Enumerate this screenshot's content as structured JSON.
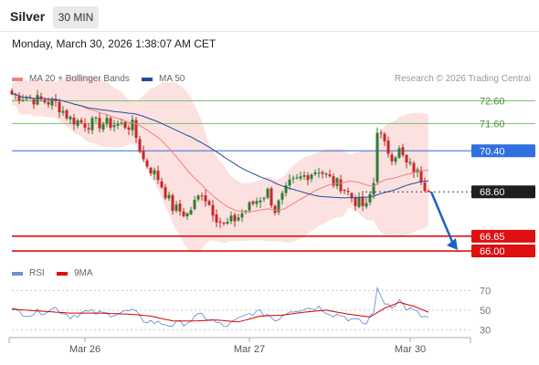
{
  "header": {
    "symbol": "Silver",
    "timeframe": "30 MIN",
    "datetime": "Monday, March 30, 2026 1:38:07 AM CET"
  },
  "legend": {
    "ma20_label": "MA 20 + Bollinger Bands",
    "ma50_label": "MA 50",
    "rsi_label": "RSI",
    "ma9_label": "9MA",
    "credit": "Research © 2026 Trading Central"
  },
  "colors": {
    "up": "#2e7d32",
    "down": "#c62828",
    "bollinger_fill": "#fbdcdc",
    "ma20": "#f08080",
    "ma50": "#1f4e9a",
    "rsi": "#6f8fd4",
    "rsi_ma": "#d40000",
    "resistance": "#7cc06a",
    "pivot": "#2f6fe0",
    "support": "#e01010",
    "last_price": "#1e1e1e",
    "arrow": "#1f5fbf"
  },
  "chart_data": [
    {
      "type": "candlestick",
      "title": "Silver 30 MIN",
      "ylim": [
        65.6,
        73.3
      ],
      "x_ticks": [
        "Mar 26",
        "Mar 27",
        "Mar 30"
      ],
      "x_tick_index": [
        20,
        65,
        109
      ],
      "candle_count": 115,
      "levels": [
        {
          "label": "72.60",
          "value": 72.6,
          "role": "resistance"
        },
        {
          "label": "71.60",
          "value": 71.6,
          "role": "resistance"
        },
        {
          "label": "70.40",
          "value": 70.4,
          "role": "pivot"
        },
        {
          "label": "68.60",
          "value": 68.6,
          "role": "last"
        },
        {
          "label": "66.65",
          "value": 66.65,
          "role": "support"
        },
        {
          "label": "66.00",
          "value": 66.0,
          "role": "support"
        }
      ],
      "arrow": {
        "from_index": 114,
        "from_value": 68.6,
        "to_index": 122,
        "to_value": 66.2
      },
      "close_anchors": [
        [
          0,
          72.9
        ],
        [
          5,
          72.7
        ],
        [
          12,
          72.5
        ],
        [
          16,
          71.8
        ],
        [
          20,
          71.6
        ],
        [
          26,
          71.6
        ],
        [
          33,
          71.5
        ],
        [
          36,
          70.0
        ],
        [
          40,
          69.2
        ],
        [
          44,
          67.9
        ],
        [
          48,
          67.6
        ],
        [
          52,
          68.6
        ],
        [
          56,
          67.5
        ],
        [
          58,
          67.1
        ],
        [
          62,
          67.5
        ],
        [
          66,
          68.1
        ],
        [
          70,
          68.6
        ],
        [
          72,
          67.8
        ],
        [
          76,
          68.9
        ],
        [
          80,
          69.3
        ],
        [
          84,
          69.6
        ],
        [
          88,
          69.0
        ],
        [
          90,
          68.9
        ],
        [
          94,
          68.2
        ],
        [
          97,
          67.9
        ],
        [
          99,
          69.0
        ],
        [
          100,
          71.4
        ],
        [
          102,
          70.6
        ],
        [
          104,
          70.2
        ],
        [
          106,
          70.4
        ],
        [
          108,
          69.8
        ],
        [
          110,
          69.6
        ],
        [
          112,
          69.2
        ],
        [
          114,
          68.6
        ]
      ]
    },
    {
      "type": "line",
      "title": "RSI",
      "ylim": [
        22,
        76
      ],
      "y_ticks": [
        70,
        50,
        30
      ],
      "series": [
        {
          "name": "RSI",
          "anchors": [
            [
              0,
              50
            ],
            [
              5,
              46
            ],
            [
              12,
              52
            ],
            [
              16,
              44
            ],
            [
              20,
              48
            ],
            [
              26,
              46
            ],
            [
              33,
              49
            ],
            [
              36,
              40
            ],
            [
              40,
              37
            ],
            [
              44,
              35
            ],
            [
              48,
              38
            ],
            [
              52,
              45
            ],
            [
              56,
              37
            ],
            [
              58,
              33
            ],
            [
              62,
              40
            ],
            [
              66,
              48
            ],
            [
              70,
              46
            ],
            [
              72,
              40
            ],
            [
              76,
              50
            ],
            [
              80,
              52
            ],
            [
              84,
              53
            ],
            [
              88,
              46
            ],
            [
              90,
              45
            ],
            [
              94,
              39
            ],
            [
              97,
              36
            ],
            [
              99,
              50
            ],
            [
              100,
              70
            ],
            [
              102,
              58
            ],
            [
              104,
              55
            ],
            [
              106,
              60
            ],
            [
              108,
              52
            ],
            [
              110,
              49
            ],
            [
              112,
              44
            ],
            [
              114,
              42
            ]
          ]
        },
        {
          "name": "9MA",
          "anchors": [
            [
              0,
              51
            ],
            [
              8,
              49
            ],
            [
              16,
              47
            ],
            [
              24,
              47
            ],
            [
              32,
              46
            ],
            [
              38,
              44
            ],
            [
              44,
              39
            ],
            [
              50,
              39
            ],
            [
              56,
              40
            ],
            [
              62,
              38
            ],
            [
              68,
              44
            ],
            [
              74,
              45
            ],
            [
              80,
              48
            ],
            [
              86,
              50
            ],
            [
              92,
              46
            ],
            [
              98,
              43
            ],
            [
              102,
              52
            ],
            [
              106,
              58
            ],
            [
              110,
              54
            ],
            [
              114,
              48
            ]
          ]
        }
      ]
    }
  ]
}
